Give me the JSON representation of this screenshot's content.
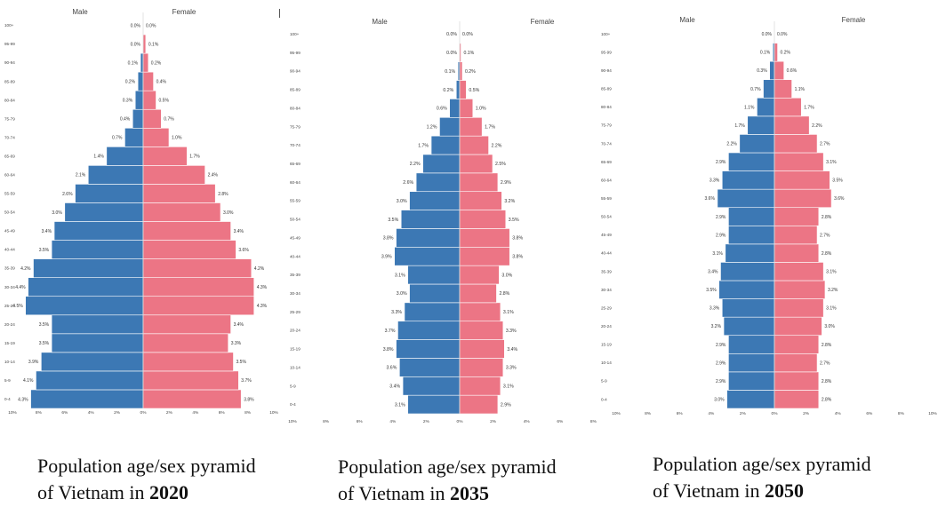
{
  "charts_meta": {
    "male_color": "#3c78b4",
    "female_color": "#ec7585",
    "bar_border_color": "#ffffff",
    "label_color": "#333333",
    "axis_label_color": "#444444"
  },
  "chart_data": [
    {
      "type": "bar",
      "orientation": "horizontal-pyramid",
      "legend_left": "Male",
      "legend_right": "Female",
      "categories": [
        "0-4",
        "5-9",
        "10-14",
        "15-19",
        "20-24",
        "25-29",
        "30-34",
        "35-39",
        "40-44",
        "45-49",
        "50-54",
        "55-59",
        "60-64",
        "65-69",
        "70-74",
        "75-79",
        "80-84",
        "85-89",
        "90-94",
        "95-99",
        "100+"
      ],
      "series": [
        {
          "name": "Male",
          "values": [
            4.3,
            4.1,
            3.9,
            3.5,
            3.5,
            4.5,
            4.4,
            4.2,
            3.5,
            3.4,
            3.0,
            2.6,
            2.1,
            1.4,
            0.7,
            0.4,
            0.3,
            0.2,
            0.1,
            0.0,
            0.0
          ],
          "labels": [
            "4.3%",
            "4.1%",
            "3.9%",
            "3.5%",
            "3.5%",
            "4.5%",
            "4.4%",
            "4.2%",
            "3.5%",
            "3.4%",
            "3.0%",
            "2.6%",
            "2.1%",
            "1.4%",
            "0.7%",
            "0.4%",
            "0.3%",
            "0.2%",
            "0.1%",
            "0.0%",
            "0.0%"
          ]
        },
        {
          "name": "Female",
          "values": [
            3.8,
            3.7,
            3.5,
            3.3,
            3.4,
            4.3,
            4.3,
            4.2,
            3.6,
            3.4,
            3.0,
            2.8,
            2.4,
            1.7,
            1.0,
            0.7,
            0.5,
            0.4,
            0.2,
            0.1,
            0.0
          ],
          "labels": [
            "3.8%",
            "3.7%",
            "3.5%",
            "3.3%",
            "3.4%",
            "4.3%",
            "4.3%",
            "4.2%",
            "3.6%",
            "3.4%",
            "3.0%",
            "2.8%",
            "2.4%",
            "1.7%",
            "1.0%",
            "0.7%",
            "0.5%",
            "0.4%",
            "0.2%",
            "0.1%",
            "0.0%"
          ]
        }
      ],
      "xlim": [
        -5,
        5
      ],
      "xticks": [
        "10%",
        "8%",
        "6%",
        "4%",
        "2%",
        "0%",
        "2%",
        "4%",
        "6%",
        "8%",
        "10%"
      ],
      "caption": {
        "line1": "Population age/sex pyramid",
        "line2_prefix": "of Vietnam in ",
        "year": "2020"
      }
    },
    {
      "type": "bar",
      "orientation": "horizontal-pyramid",
      "legend_left": "Male",
      "legend_right": "Female",
      "categories": [
        "0-4",
        "5-9",
        "10-14",
        "15-19",
        "20-24",
        "25-29",
        "30-34",
        "35-39",
        "40-44",
        "45-49",
        "50-54",
        "55-59",
        "60-64",
        "65-69",
        "70-74",
        "75-79",
        "80-84",
        "85-89",
        "90-94",
        "95-99",
        "100+"
      ],
      "series": [
        {
          "name": "Male",
          "values": [
            3.1,
            3.4,
            3.6,
            3.8,
            3.7,
            3.3,
            3.0,
            3.1,
            3.9,
            3.8,
            3.5,
            3.0,
            2.6,
            2.2,
            1.7,
            1.2,
            0.6,
            0.2,
            0.1,
            0.0,
            0.0
          ],
          "labels": [
            "3.1%",
            "3.4%",
            "3.6%",
            "3.8%",
            "3.7%",
            "3.3%",
            "3.0%",
            "3.1%",
            "3.9%",
            "3.8%",
            "3.5%",
            "3.0%",
            "2.6%",
            "2.2%",
            "1.7%",
            "1.2%",
            "0.6%",
            "0.2%",
            "0.1%",
            "0.0%",
            "0.0%"
          ]
        },
        {
          "name": "Female",
          "values": [
            2.9,
            3.1,
            3.3,
            3.4,
            3.3,
            3.1,
            2.8,
            3.0,
            3.8,
            3.8,
            3.5,
            3.2,
            2.9,
            2.5,
            2.2,
            1.7,
            1.0,
            0.5,
            0.2,
            0.1,
            0.0
          ],
          "labels": [
            "2.9%",
            "3.1%",
            "3.3%",
            "3.4%",
            "3.3%",
            "3.1%",
            "2.8%",
            "3.0%",
            "3.8%",
            "3.8%",
            "3.5%",
            "3.2%",
            "2.9%",
            "2.5%",
            "2.2%",
            "1.7%",
            "1.0%",
            "0.5%",
            "0.2%",
            "0.1%",
            "0.0%"
          ]
        }
      ],
      "xlim": [
        -10,
        10
      ],
      "xticks": [
        "10%",
        "8%",
        "6%",
        "4%",
        "2%",
        "0%",
        "2%",
        "4%",
        "6%",
        "8%"
      ],
      "caption": {
        "line1": "Population age/sex pyramid",
        "line2_prefix": "of Vietnam in ",
        "year": "2035"
      }
    },
    {
      "type": "bar",
      "orientation": "horizontal-pyramid",
      "legend_left": "Male",
      "legend_right": "Female",
      "categories": [
        "0-4",
        "5-9",
        "10-14",
        "15-19",
        "20-24",
        "25-29",
        "30-34",
        "35-39",
        "40-44",
        "45-49",
        "50-54",
        "55-59",
        "60-64",
        "65-69",
        "70-74",
        "75-79",
        "80-84",
        "85-89",
        "90-94",
        "95-99",
        "100+"
      ],
      "series": [
        {
          "name": "Male",
          "values": [
            3.0,
            2.9,
            2.9,
            2.9,
            3.2,
            3.3,
            3.5,
            3.4,
            3.1,
            2.9,
            2.9,
            3.6,
            3.3,
            2.9,
            2.2,
            1.7,
            1.1,
            0.7,
            0.3,
            0.1,
            0.0
          ],
          "labels": [
            "3.0%",
            "2.9%",
            "2.9%",
            "2.9%",
            "3.2%",
            "3.3%",
            "3.5%",
            "3.4%",
            "3.1%",
            "2.9%",
            "2.9%",
            "3.6%",
            "3.3%",
            "2.9%",
            "2.2%",
            "1.7%",
            "1.1%",
            "0.7%",
            "0.3%",
            "0.1%",
            "0.0%"
          ]
        },
        {
          "name": "Female",
          "values": [
            2.8,
            2.8,
            2.7,
            2.8,
            3.0,
            3.1,
            3.2,
            3.1,
            2.8,
            2.7,
            2.8,
            3.6,
            3.5,
            3.1,
            2.7,
            2.2,
            1.7,
            1.1,
            0.6,
            0.2,
            0.0
          ],
          "labels": [
            "2.8%",
            "2.8%",
            "2.7%",
            "2.8%",
            "3.0%",
            "3.1%",
            "3.2%",
            "3.1%",
            "2.8%",
            "2.7%",
            "2.8%",
            "3.6%",
            "3.5%",
            "3.1%",
            "2.7%",
            "2.2%",
            "1.7%",
            "1.1%",
            "0.6%",
            "0.2%",
            "0.0%"
          ]
        }
      ],
      "xlim": [
        -10,
        10
      ],
      "xticks": [
        "10%",
        "8%",
        "6%",
        "4%",
        "2%",
        "0%",
        "2%",
        "4%",
        "6%",
        "8%",
        "10%"
      ],
      "caption": {
        "line1": "Population age/sex pyramid",
        "line2_prefix": "of Vietnam in ",
        "year": "2050"
      }
    }
  ]
}
